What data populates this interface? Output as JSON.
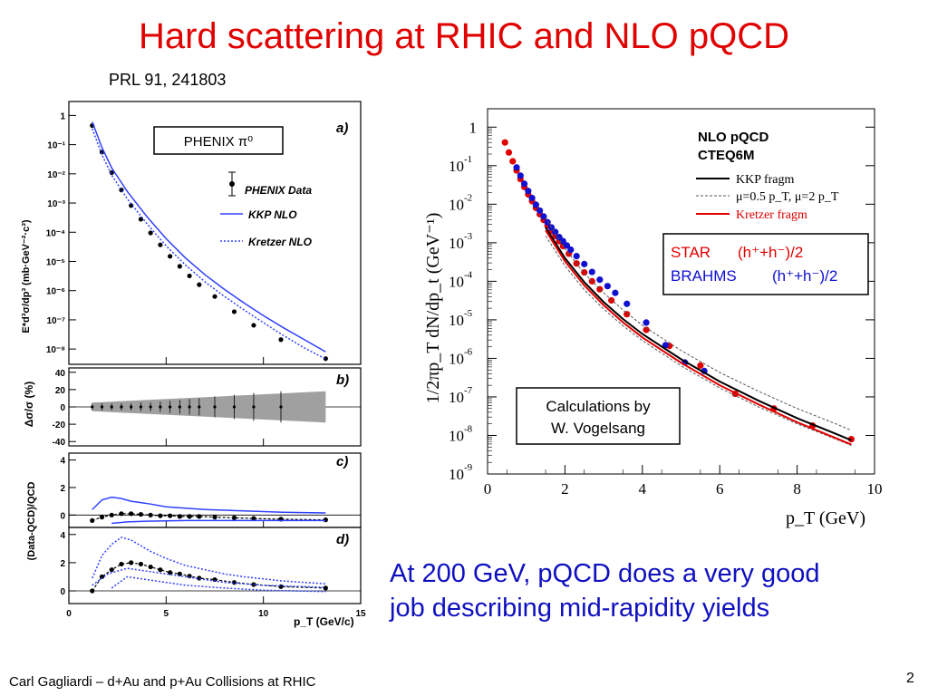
{
  "slide": {
    "title": "Hard scattering at RHIC and NLO pQCD",
    "reference": "PRL 91, 241803",
    "conclusion_line1": "At 200 GeV, pQCD does a very good",
    "conclusion_line2": "job describing mid-rapidity yields",
    "footer": "Carl Gagliardi – d+Au and p+Au Collisions at RHIC",
    "page_number": "2"
  },
  "colors": {
    "title": "#e00000",
    "conclusion": "#1010c0",
    "star": "#e00000",
    "brahms": "#1010d0",
    "kkp_nlo": "#3040ff",
    "band": "#a0a0a0"
  },
  "chart_data": [
    {
      "id": "phenix",
      "type": "scatter",
      "panels": [
        {
          "name": "a",
          "label": "a)",
          "box_label": "PHENIX π⁰",
          "ylabel": "E*d³σ/dp³ (mb·GeV⁻²·c³)",
          "yscale": "log",
          "ylim": [
            3e-09,
            3
          ],
          "yticks": [
            "1",
            "10⁻¹",
            "10⁻²",
            "10⁻³",
            "10⁻⁴",
            "10⁻⁵",
            "10⁻⁶",
            "10⁻⁷",
            "10⁻⁸"
          ],
          "ytick_values": [
            1,
            0.1,
            0.01,
            0.001,
            0.0001,
            1e-05,
            1e-06,
            1e-07,
            1e-08
          ],
          "legend": [
            "PHENIX Data",
            "KKP NLO",
            "Kretzer NLO"
          ],
          "series": [
            {
              "name": "PHENIX Data",
              "style": "points",
              "x": [
                1.2,
                1.7,
                2.2,
                2.7,
                3.2,
                3.7,
                4.2,
                4.7,
                5.2,
                5.7,
                6.2,
                6.7,
                7.5,
                8.5,
                9.5,
                10.9,
                13.2
              ],
              "y": [
                0.45,
                0.055,
                0.011,
                0.0028,
                0.00082,
                0.00028,
                9.5e-05,
                3.7e-05,
                1.5e-05,
                6.8e-06,
                3.2e-06,
                1.6e-06,
                6.3e-07,
                1.9e-07,
                6.5e-08,
                2.1e-08,
                4.7e-09
              ]
            },
            {
              "name": "KKP NLO",
              "style": "solid",
              "x": [
                1.2,
                1.7,
                2.2,
                3,
                4,
                5,
                6,
                7,
                8,
                9,
                10,
                11,
                12,
                13.2
              ],
              "y": [
                0.6,
                0.08,
                0.016,
                0.0025,
                0.00035,
                6e-05,
                1.3e-05,
                3.5e-06,
                1.1e-06,
                3.8e-07,
                1.4e-07,
                5.5e-08,
                2.3e-08,
                8e-09
              ]
            },
            {
              "name": "Kretzer NLO",
              "style": "dotted",
              "x": [
                1.2,
                1.7,
                2.2,
                3,
                4,
                5,
                6,
                7,
                8,
                9,
                10,
                11,
                12,
                13.2
              ],
              "y": [
                0.35,
                0.045,
                0.009,
                0.0014,
                0.0002,
                3.4e-05,
                7.5e-06,
                2e-06,
                6.3e-07,
                2.2e-07,
                8e-08,
                3e-08,
                1.2e-08,
                4.5e-09
              ]
            }
          ]
        },
        {
          "name": "b",
          "label": "b)",
          "ylabel": "Δσ/σ (%)",
          "ylim": [
            -45,
            45
          ],
          "yticks": [
            "40",
            "20",
            "0",
            "-20",
            "-40"
          ],
          "ytick_values": [
            40,
            20,
            0,
            -20,
            -40
          ],
          "band": {
            "x": [
              1.2,
              13.2
            ],
            "half_width": [
              5,
              18
            ]
          },
          "series": [
            {
              "name": "uncertainty",
              "x": [
                1.2,
                1.7,
                2.2,
                2.7,
                3.2,
                3.7,
                4.2,
                4.7,
                5.2,
                5.7,
                6.2,
                6.7,
                7.5,
                8.5,
                9.5,
                10.9
              ],
              "y": [
                0,
                0,
                0,
                0,
                0,
                0,
                0,
                0,
                0,
                0,
                0,
                0,
                0,
                0,
                0,
                0
              ],
              "err": [
                4,
                4,
                4,
                4,
                4,
                5,
                5,
                6,
                7,
                8,
                9,
                10,
                12,
                14,
                16,
                18
              ]
            }
          ]
        },
        {
          "name": "c",
          "label": "c)",
          "ylim": [
            -0.9,
            4.5
          ],
          "yticks": [
            "4",
            "2",
            "0"
          ],
          "ytick_values": [
            4,
            2,
            0
          ],
          "series": [
            {
              "name": "ratio",
              "style": "points",
              "x": [
                1.2,
                1.7,
                2.2,
                2.7,
                3.2,
                3.7,
                4.2,
                4.7,
                5.2,
                5.7,
                6.2,
                6.7,
                7.5,
                8.5,
                9.5,
                10.9,
                13.2
              ],
              "y": [
                -0.4,
                -0.15,
                0,
                0.1,
                0.1,
                0.05,
                0,
                -0.05,
                -0.05,
                -0.1,
                -0.1,
                -0.1,
                -0.15,
                -0.2,
                -0.25,
                -0.3,
                -0.35
              ]
            },
            {
              "name": "upper",
              "style": "solid",
              "x": [
                1.2,
                1.7,
                2.2,
                2.7,
                3.2,
                3.7,
                4.2,
                5,
                6,
                7,
                8,
                9,
                10,
                11,
                13.2
              ],
              "y": [
                0.4,
                1.1,
                1.3,
                1.2,
                1.0,
                0.9,
                0.8,
                0.6,
                0.5,
                0.4,
                0.35,
                0.3,
                0.25,
                0.2,
                0.15
              ]
            },
            {
              "name": "lower",
              "style": "solid",
              "x": [
                2.2,
                3,
                4,
                6,
                8,
                10,
                13.2
              ],
              "y": [
                -0.6,
                -0.5,
                -0.45,
                -0.4,
                -0.4,
                -0.4,
                -0.4
              ]
            }
          ]
        },
        {
          "name": "d",
          "label": "d)",
          "ylim": [
            -0.9,
            4.5
          ],
          "yticks": [
            "4",
            "2",
            "0"
          ],
          "ytick_values": [
            4,
            2,
            0
          ],
          "xlabel": "p_T (GeV/c)",
          "xlim": [
            0,
            15
          ],
          "xticks": [
            "0",
            "5",
            "10",
            "15"
          ],
          "xtick_values": [
            0,
            5,
            10,
            15
          ],
          "series": [
            {
              "name": "ratio",
              "style": "points",
              "x": [
                1.2,
                1.7,
                2.2,
                2.7,
                3.2,
                3.7,
                4.2,
                4.7,
                5.2,
                5.7,
                6.2,
                6.7,
                7.5,
                8.5,
                9.5,
                10.9,
                13.2
              ],
              "y": [
                0.0,
                1.0,
                1.5,
                1.9,
                2.0,
                1.9,
                1.7,
                1.5,
                1.3,
                1.2,
                1.05,
                0.9,
                0.8,
                0.6,
                0.45,
                0.3,
                0.2
              ]
            },
            {
              "name": "upper",
              "style": "dotted",
              "x": [
                1.2,
                1.7,
                2.2,
                2.7,
                3.2,
                3.7,
                4.2,
                5,
                6,
                7,
                8,
                9,
                10,
                11,
                13.2
              ],
              "y": [
                0.9,
                2.5,
                3.3,
                3.8,
                3.6,
                3.2,
                2.8,
                2.3,
                1.8,
                1.5,
                1.2,
                1.0,
                0.85,
                0.7,
                0.5
              ]
            },
            {
              "name": "middle",
              "style": "dotted",
              "x": [
                1.2,
                2,
                3,
                4,
                5,
                6,
                7,
                8,
                10,
                13.2
              ],
              "y": [
                0.4,
                1.2,
                1.6,
                1.4,
                1.2,
                1.0,
                0.8,
                0.6,
                0.4,
                0.25
              ]
            },
            {
              "name": "lower",
              "style": "dotted",
              "x": [
                2.2,
                3,
                4,
                6,
                8,
                10,
                13.2
              ],
              "y": [
                0.2,
                1.0,
                0.8,
                0.4,
                0.2,
                0.05,
                -0.05
              ]
            }
          ]
        }
      ],
      "shared_ylabel": "(Data-QCD)/QCD"
    },
    {
      "id": "star_brahms",
      "type": "scatter",
      "xlabel": "p_T (GeV)",
      "ylabel": "1/2πp_T dN/dp_t (GeV⁻¹)",
      "xlim": [
        0,
        10
      ],
      "xticks": [
        "0",
        "2",
        "4",
        "6",
        "8",
        "10"
      ],
      "xtick_values": [
        0,
        2,
        4,
        6,
        8,
        10
      ],
      "yscale": "log",
      "ylim": [
        1e-09,
        3
      ],
      "yticks_base": "10",
      "ytick_exponents": [
        "",
        "-1",
        "-2",
        "-3",
        "-4",
        "-5",
        "-6",
        "-7",
        "-8",
        "-9"
      ],
      "ytick_first": "1",
      "ytick_values": [
        1,
        0.1,
        0.01,
        0.001,
        0.0001,
        1e-05,
        1e-06,
        1e-07,
        1e-08,
        1e-09
      ],
      "legend_title_1": "NLO pQCD",
      "legend_title_2": "CTEQ6M",
      "legend": [
        "KKP fragm",
        "μ=0.5 p_T, μ=2 p_T",
        "Kretzer fragm"
      ],
      "data_legend": {
        "star": "STAR",
        "star_ch": "(h⁺+h⁻)/2",
        "brahms": "BRAHMS",
        "brahms_ch": "(h⁺+h⁻)/2"
      },
      "annotation_line1": "Calculations by",
      "annotation_line2": "W. Vogelsang",
      "series": [
        {
          "name": "STAR",
          "style": "points",
          "x": [
            0.45,
            0.55,
            0.65,
            0.75,
            0.85,
            0.95,
            1.05,
            1.15,
            1.25,
            1.35,
            1.45,
            1.55,
            1.65,
            1.75,
            1.85,
            1.95,
            2.1,
            2.3,
            2.5,
            2.7,
            2.9,
            3.2,
            3.6,
            4.1,
            4.7,
            5.5,
            6.4,
            7.4,
            8.4,
            9.4
          ],
          "y": [
            0.4,
            0.22,
            0.13,
            0.075,
            0.045,
            0.028,
            0.018,
            0.012,
            0.008,
            0.0055,
            0.0039,
            0.0028,
            0.002,
            0.0015,
            0.0011,
            0.00082,
            0.00052,
            0.00029,
            0.00017,
            0.0001,
            6.2e-05,
            3.2e-05,
            1.4e-05,
            5.5e-06,
            2.1e-06,
            6.5e-07,
            1.2e-07,
            5e-08,
            1.8e-08,
            8e-09
          ]
        },
        {
          "name": "BRAHMS",
          "style": "points",
          "x": [
            0.75,
            0.85,
            0.95,
            1.05,
            1.15,
            1.25,
            1.35,
            1.45,
            1.55,
            1.65,
            1.75,
            1.85,
            1.95,
            2.05,
            2.15,
            2.3,
            2.5,
            2.7,
            2.9,
            3.1,
            3.3,
            3.6,
            4.1,
            4.6,
            5.1,
            5.6
          ],
          "y": [
            0.09,
            0.055,
            0.034,
            0.022,
            0.0145,
            0.0097,
            0.0068,
            0.0048,
            0.0034,
            0.0025,
            0.0019,
            0.0014,
            0.0011,
            0.00085,
            0.00066,
            0.00045,
            0.00028,
            0.000175,
            0.00011,
            7.5e-05,
            5e-05,
            2.6e-05,
            8.5e-06,
            2.2e-06,
            7.8e-07,
            4.7e-07
          ]
        },
        {
          "name": "KKP fragm",
          "style": "solid",
          "x": [
            1.5,
            2,
            2.5,
            3,
            3.5,
            4,
            5,
            6,
            7,
            8,
            9,
            9.4
          ],
          "y": [
            0.0025,
            0.0004,
            9.5e-05,
            2.9e-05,
            1.05e-05,
            4.3e-06,
            9.5e-07,
            2.5e-07,
            8e-08,
            2.8e-08,
            1.1e-08,
            7.5e-09
          ]
        },
        {
          "name": "μ=0.5 p_T",
          "style": "dashed",
          "x": [
            1.5,
            2,
            2.5,
            3,
            3.5,
            4,
            5,
            6,
            7,
            8,
            9,
            9.4
          ],
          "y": [
            0.0045,
            0.0007,
            0.00016,
            5e-05,
            1.8e-05,
            7.2e-06,
            1.6e-06,
            4.3e-07,
            1.4e-07,
            5e-08,
            2e-08,
            1.35e-08
          ]
        },
        {
          "name": "μ=2 p_T",
          "style": "dashed",
          "x": [
            1.5,
            2,
            2.5,
            3,
            3.5,
            4,
            5,
            6,
            7,
            8,
            9,
            9.4
          ],
          "y": [
            0.0015,
            0.00025,
            6e-05,
            1.9e-05,
            7e-06,
            2.9e-06,
            6.4e-07,
            1.7e-07,
            5.5e-08,
            2e-08,
            8e-09,
            5.5e-09
          ]
        },
        {
          "name": "Kretzer fragm",
          "style": "solid",
          "x": [
            1.5,
            2,
            2.5,
            3,
            3.5,
            4,
            5,
            6,
            7,
            8,
            9,
            9.4
          ],
          "y": [
            0.0021,
            0.00033,
            7.8e-05,
            2.4e-05,
            8.6e-06,
            3.5e-06,
            7.7e-07,
            2e-07,
            6.4e-08,
            2.2e-08,
            8.5e-09,
            5.8e-09
          ]
        }
      ]
    }
  ]
}
